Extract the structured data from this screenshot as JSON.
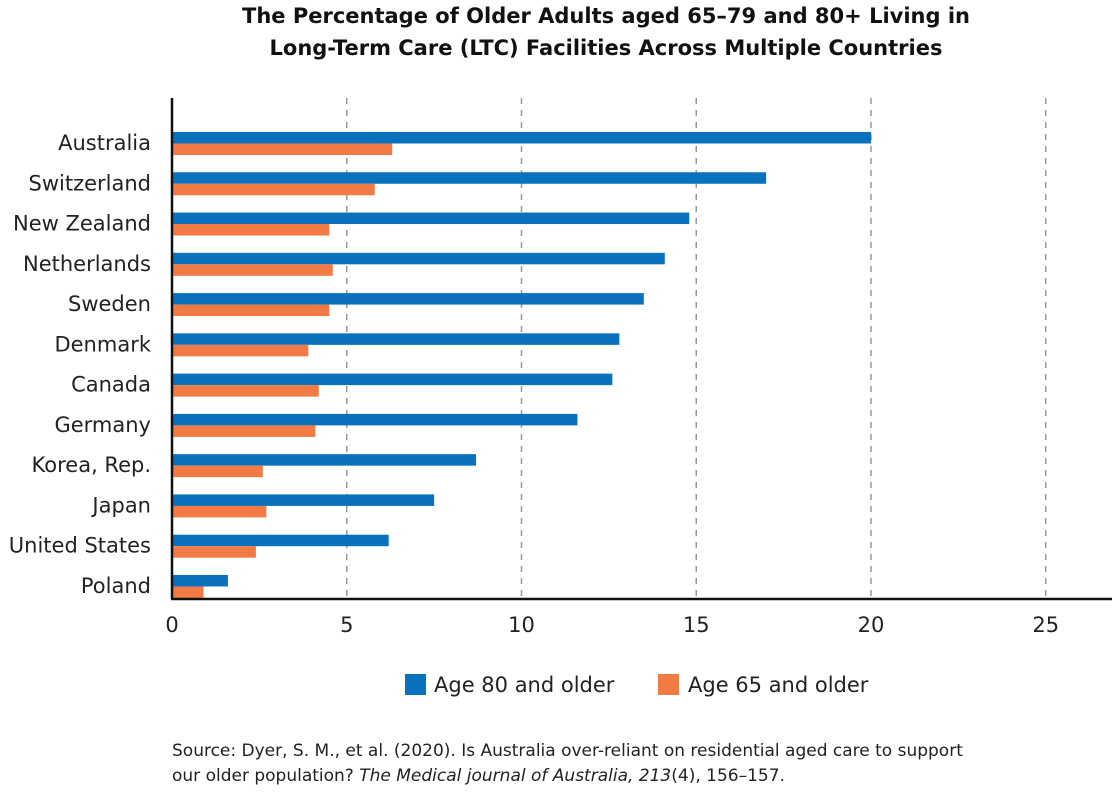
{
  "chart_data": {
    "type": "bar",
    "orientation": "horizontal",
    "title": "The Percentage of Older Adults aged 65–79 and 80+ Living in Long-Term Care (LTC) Facilities Across Multiple Countries",
    "title_lines": [
      "The Percentage of Older Adults aged 65–79 and 80+ Living in",
      "Long-Term Care (LTC) Facilities Across Multiple Countries"
    ],
    "categories": [
      "Australia",
      "Switzerland",
      "New Zealand",
      "Netherlands",
      "Sweden",
      "Denmark",
      "Canada",
      "Germany",
      "Korea, Rep.",
      "Japan",
      "United States",
      "Poland"
    ],
    "series": [
      {
        "name": "Age 80 and older",
        "color": "#0a72bd",
        "values": [
          20.0,
          17.0,
          14.8,
          14.1,
          13.5,
          12.8,
          12.6,
          11.6,
          8.7,
          7.5,
          6.2,
          1.6
        ]
      },
      {
        "name": "Age 65 and older",
        "color": "#f27a45",
        "values": [
          6.3,
          5.8,
          4.5,
          4.6,
          4.5,
          3.9,
          4.2,
          4.1,
          2.6,
          2.7,
          2.4,
          0.9
        ]
      }
    ],
    "xlim": [
      0,
      25
    ],
    "xticks": [
      "0",
      "5",
      "10",
      "15",
      "20",
      "25"
    ],
    "xlabel": "",
    "ylabel": "",
    "grid": "vertical dashed",
    "legend_position": "bottom"
  },
  "source": {
    "prefix": "Source: Dyer, S. M., et al. (2020). Is Australia over-reliant on residential aged care to support",
    "line2_start": "our older population? ",
    "journal": "The Medical journal of Australia, 213",
    "issue": "(4), 156–157."
  }
}
